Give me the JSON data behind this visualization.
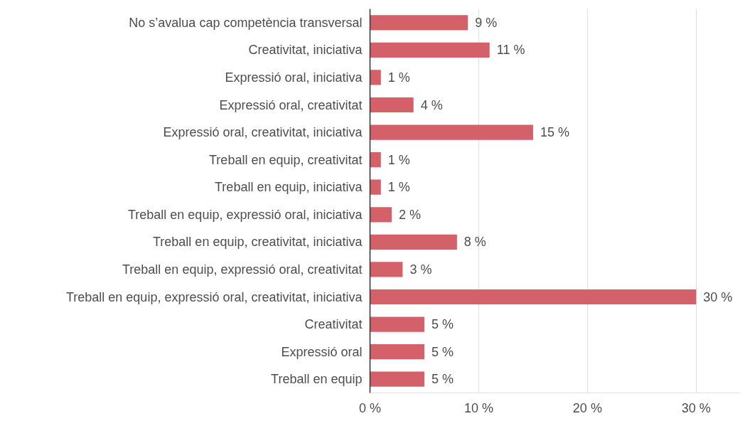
{
  "chart_data": {
    "type": "bar",
    "orientation": "horizontal",
    "categories": [
      "No s’avalua cap competència transversal",
      "Creativitat, iniciativa",
      "Expressió oral, iniciativa",
      "Expressió oral, creativitat",
      "Expressió oral, creativitat, iniciativa",
      "Treball en equip, creativitat",
      "Treball en equip, iniciativa",
      "Treball en equip, expressió oral, iniciativa",
      "Treball en equip, creativitat, iniciativa",
      "Treball en equip, expressió oral, creativitat",
      "Treball en equip, expressió oral, creativitat, iniciativa",
      "Creativitat",
      "Expressió oral",
      "Treball en equip"
    ],
    "values": [
      9,
      11,
      1,
      4,
      15,
      1,
      1,
      2,
      8,
      3,
      30,
      5,
      5,
      5
    ],
    "value_labels": [
      "9 %",
      "11 %",
      "1 %",
      "4 %",
      "15 %",
      "1 %",
      "1 %",
      "2 %",
      "8 %",
      "3 %",
      "30 %",
      "5 %",
      "5 %",
      "5 %"
    ],
    "color": "#d4606a",
    "xlim": [
      0,
      34
    ],
    "xticks": [
      {
        "value": 0,
        "label": "0 %"
      },
      {
        "value": 10,
        "label": "10 %"
      },
      {
        "value": 20,
        "label": "20 %"
      },
      {
        "value": 30,
        "label": "30 %"
      }
    ],
    "grid": "x"
  }
}
